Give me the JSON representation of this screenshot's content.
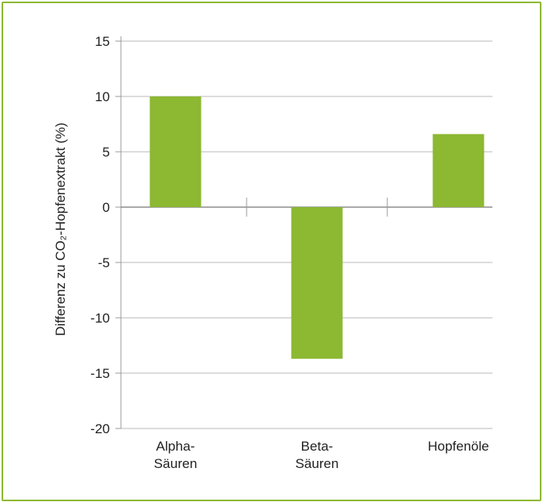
{
  "chart_data": {
    "type": "bar",
    "ylabel": "Differenz zu CO₂-Hopfenextrakt (%)",
    "xlabel": "",
    "title": "",
    "categories": [
      [
        "Alpha-",
        "Säuren"
      ],
      [
        "Beta-",
        "Säuren"
      ],
      [
        "Hopfenöle"
      ]
    ],
    "values": [
      10.0,
      -13.7,
      6.6
    ],
    "ylim": [
      -20,
      15
    ],
    "yticks": [
      15,
      10,
      5,
      0,
      -5,
      -10,
      -15,
      -20
    ],
    "grid": true,
    "legend": "none"
  },
  "colors": {
    "bar": "#8cb832",
    "frame": "#8cb832",
    "grid": "#b8b8b8",
    "axis": "#999999"
  }
}
